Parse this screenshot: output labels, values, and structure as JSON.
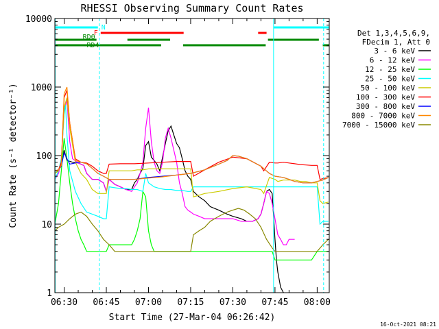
{
  "chart_data": {
    "type": "line",
    "title": "RHESSI Observing Summary Count Rates",
    "xlabel": "Start Time (27-Mar-04 06:26:42)",
    "ylabel": "Count Rate (s⁻¹ detector⁻¹)",
    "x_unit": "minutes after 06:00 UT on 27-Mar-04",
    "xlim": [
      26.7,
      124.3
    ],
    "ylim": [
      1,
      10000
    ],
    "y_scale": "log",
    "x_ticks": [
      {
        "value": 30,
        "label": "06:30"
      },
      {
        "value": 45,
        "label": "06:45"
      },
      {
        "value": 60,
        "label": "07:00"
      },
      {
        "value": 75,
        "label": "07:15"
      },
      {
        "value": 90,
        "label": "07:30"
      },
      {
        "value": 105,
        "label": "07:45"
      },
      {
        "value": 120,
        "label": "08:00"
      }
    ],
    "y_ticks": [
      {
        "value": 1,
        "label": "1"
      },
      {
        "value": 10,
        "label": "10"
      },
      {
        "value": 100,
        "label": "100"
      },
      {
        "value": 1000,
        "label": "1000"
      },
      {
        "value": 10000,
        "label": "10000"
      }
    ],
    "legend_header": [
      "Det 1,3,4,5,6,9,",
      "FDecim 1, Att 0"
    ],
    "legend_position": "right",
    "grid": false,
    "series": [
      {
        "name": "3 - 6 keV",
        "color": "#000000",
        "x": [
          26.7,
          28,
          29,
          30,
          31,
          33,
          35,
          37,
          38,
          40,
          42,
          44,
          45,
          46,
          48,
          50,
          52,
          54,
          55,
          56,
          57,
          58,
          59,
          60,
          61,
          62,
          63,
          64,
          65,
          66,
          67,
          68,
          69,
          70,
          71,
          72,
          73,
          74,
          75,
          76,
          78,
          80,
          82,
          85,
          88,
          90,
          93,
          95,
          97,
          99,
          100,
          101,
          102,
          103,
          104,
          105,
          105.5,
          106,
          107,
          108
        ],
        "y": [
          55,
          60,
          72,
          120,
          85,
          80,
          78,
          72,
          55,
          45,
          45,
          40,
          30,
          45,
          38,
          35,
          32,
          32,
          40,
          45,
          55,
          65,
          140,
          160,
          95,
          85,
          75,
          60,
          95,
          150,
          230,
          270,
          200,
          150,
          130,
          90,
          60,
          50,
          45,
          30,
          25,
          22,
          18,
          16,
          14,
          13,
          12,
          11,
          11,
          12,
          14,
          20,
          30,
          32,
          28,
          6,
          3,
          2,
          1.2,
          1
        ]
      },
      {
        "name": "6 - 12 keV",
        "color": "#ff00ff",
        "x": [
          26.7,
          28,
          29,
          30,
          31,
          32,
          33,
          35,
          37,
          38,
          40,
          42,
          44,
          45,
          46,
          48,
          50,
          52,
          54,
          55,
          56,
          57,
          58,
          59,
          60,
          61,
          62,
          63,
          64,
          65,
          66,
          67,
          68,
          69,
          70,
          71,
          72,
          73,
          74,
          75,
          76,
          78,
          80,
          82,
          85,
          88,
          90,
          93,
          95,
          97,
          99,
          100,
          101,
          102,
          103,
          104,
          105,
          106,
          107,
          108,
          109,
          110,
          112
        ],
        "y": [
          45,
          55,
          80,
          450,
          650,
          160,
          90,
          78,
          72,
          55,
          45,
          45,
          40,
          30,
          45,
          38,
          35,
          32,
          30,
          35,
          40,
          55,
          80,
          250,
          500,
          160,
          80,
          60,
          55,
          80,
          180,
          250,
          180,
          120,
          80,
          40,
          28,
          18,
          16,
          15,
          14,
          13,
          12,
          12,
          12,
          12,
          12,
          11,
          11,
          11,
          12,
          14,
          20,
          30,
          28,
          20,
          12,
          7,
          6,
          5,
          5,
          6,
          6
        ]
      },
      {
        "name": "12 - 25 keV",
        "color": "#00ff00",
        "x": [
          26.7,
          28,
          29,
          30,
          31,
          32,
          33,
          34,
          35,
          36,
          37,
          38,
          40,
          42,
          44,
          45,
          46,
          48,
          50,
          52,
          54,
          55,
          56,
          57,
          58,
          59,
          60,
          61,
          62,
          63,
          64,
          66,
          68,
          70,
          72,
          74,
          75,
          76,
          80,
          85,
          90,
          95,
          100,
          104,
          105,
          106,
          108,
          110,
          112,
          114,
          116,
          118,
          120,
          122,
          124
        ],
        "y": [
          10,
          20,
          60,
          180,
          90,
          40,
          20,
          12,
          8,
          6,
          5,
          4,
          4,
          4,
          4,
          4,
          5,
          5,
          5,
          5,
          5,
          6,
          8,
          12,
          30,
          25,
          8,
          5,
          4,
          4,
          4,
          4,
          4,
          4,
          4,
          4,
          4,
          4,
          4,
          4,
          4,
          4,
          4,
          4,
          3,
          3,
          3,
          3,
          3,
          3,
          3,
          3,
          4,
          4,
          4
        ]
      },
      {
        "name": "25 - 50 keV",
        "color": "#00ffff",
        "x": [
          26.7,
          28,
          29,
          30,
          30.5,
          31,
          32,
          34,
          36,
          38,
          40,
          42,
          44,
          45,
          46,
          48,
          50,
          52,
          54,
          56,
          58,
          59,
          60,
          62,
          64,
          66,
          68,
          70,
          72,
          74,
          75,
          76,
          78,
          80,
          85,
          90,
          95,
          100,
          104,
          105,
          106,
          108,
          110,
          112,
          114,
          116,
          118,
          120,
          121,
          122,
          124
        ],
        "y": [
          45,
          60,
          90,
          400,
          550,
          200,
          60,
          30,
          20,
          15,
          14,
          13,
          12,
          12,
          35,
          34,
          33,
          33,
          32,
          32,
          30,
          55,
          40,
          35,
          33,
          32,
          32,
          31,
          31,
          30,
          30,
          35,
          35,
          35,
          35,
          35,
          35,
          35,
          35,
          35,
          35,
          35,
          35,
          35,
          35,
          35,
          35,
          35,
          10,
          11,
          11
        ]
      },
      {
        "name": "50 - 100 keV",
        "color": "#cccc00",
        "x": [
          26.7,
          28,
          29,
          30,
          31,
          32,
          34,
          36,
          38,
          40,
          42,
          44,
          45,
          46,
          48,
          50,
          52,
          54,
          56,
          58,
          60,
          62,
          64,
          66,
          68,
          70,
          72,
          74,
          75,
          76,
          80,
          85,
          90,
          95,
          100,
          101,
          103,
          105,
          106,
          108,
          110,
          112,
          114,
          116,
          118,
          120,
          121,
          122,
          124
        ],
        "y": [
          55,
          60,
          80,
          500,
          700,
          250,
          80,
          55,
          45,
          32,
          28,
          28,
          28,
          60,
          60,
          60,
          60,
          60,
          62,
          62,
          64,
          64,
          64,
          64,
          64,
          64,
          64,
          64,
          64,
          25,
          28,
          30,
          33,
          35,
          32,
          28,
          48,
          45,
          42,
          44,
          44,
          44,
          42,
          42,
          40,
          40,
          22,
          20,
          21
        ]
      },
      {
        "name": "100 - 300 keV",
        "color": "#ff0000",
        "x": [
          26.7,
          28,
          29,
          30,
          31,
          32,
          34,
          36,
          38,
          40,
          42,
          44,
          45,
          46,
          50,
          55,
          60,
          65,
          70,
          74,
          75,
          76,
          80,
          85,
          90,
          95,
          100,
          101,
          103,
          105,
          106,
          108,
          110,
          112,
          114,
          116,
          118,
          120,
          121,
          122,
          124
        ],
        "y": [
          60,
          62,
          80,
          700,
          900,
          300,
          90,
          80,
          78,
          70,
          60,
          55,
          55,
          75,
          76,
          76,
          78,
          80,
          82,
          82,
          82,
          50,
          62,
          80,
          95,
          90,
          70,
          60,
          80,
          78,
          78,
          80,
          78,
          76,
          74,
          73,
          72,
          72,
          45,
          46,
          48
        ]
      },
      {
        "name": "300 - 800 keV",
        "color": "#0000ff",
        "x": [
          26.7,
          28,
          29,
          30,
          31,
          32,
          34,
          36,
          38,
          40,
          42,
          44,
          46,
          50,
          55,
          60,
          65,
          70,
          75,
          80,
          85,
          88,
          90,
          92,
          95,
          100,
          103,
          105,
          108,
          110,
          112,
          115,
          118,
          120,
          122,
          124
        ],
        "y": [
          60,
          62,
          70,
          110,
          90,
          75,
          78,
          80,
          76,
          65,
          55,
          50,
          45,
          45,
          45,
          48,
          50,
          52,
          55,
          62,
          75,
          85,
          100,
          98,
          90,
          70,
          55,
          50,
          48,
          45,
          42,
          40,
          40,
          42,
          44,
          48
        ]
      },
      {
        "name": "800 - 7000 keV",
        "color": "#ff8800",
        "x": [
          26.7,
          28,
          29,
          30,
          31,
          32,
          34,
          36,
          38,
          40,
          42,
          44,
          46,
          50,
          55,
          60,
          65,
          70,
          75,
          80,
          85,
          88,
          90,
          92,
          95,
          100,
          103,
          105,
          108,
          110,
          112,
          115,
          118,
          120,
          122,
          124
        ],
        "y": [
          60,
          62,
          72,
          800,
          1000,
          300,
          85,
          80,
          76,
          65,
          55,
          50,
          45,
          45,
          45,
          47,
          49,
          52,
          55,
          62,
          75,
          85,
          100,
          98,
          90,
          70,
          55,
          50,
          48,
          45,
          42,
          40,
          40,
          42,
          44,
          48
        ]
      },
      {
        "name": "7000 - 15000 keV",
        "color": "#888800",
        "x": [
          26.7,
          28,
          30,
          32,
          34,
          36,
          38,
          40,
          42,
          44,
          46,
          48,
          50,
          55,
          60,
          65,
          70,
          74,
          75,
          76,
          78,
          80,
          82,
          85,
          88,
          90,
          92,
          94,
          96,
          98,
          100,
          102,
          104,
          105,
          106,
          108,
          110,
          115,
          120,
          122,
          124
        ],
        "y": [
          8,
          9,
          10,
          12,
          14,
          15,
          13,
          10,
          8,
          6,
          5,
          4,
          4,
          4,
          4,
          4,
          4,
          4,
          4,
          7,
          8,
          9,
          11,
          13,
          15,
          16,
          17,
          16,
          14,
          12,
          9,
          6,
          4.5,
          4,
          4,
          4,
          4,
          4,
          4,
          5,
          6
        ]
      }
    ],
    "annotations": [
      {
        "label": "N",
        "color": "#00ffff",
        "segments": [
          [
            26.7,
            42
          ],
          [
            104.5,
            124.3
          ]
        ]
      },
      {
        "label": "F",
        "color": "#ff0000",
        "segments": [
          [
            43,
            72.5
          ],
          [
            99,
            102
          ]
        ]
      },
      {
        "label": "RD0",
        "color": "#008800",
        "segments": [
          [
            26.7,
            41.5
          ],
          [
            52.5,
            67.7
          ],
          [
            102.5,
            120.6
          ]
        ]
      },
      {
        "label": "RD4",
        "color": "#008800",
        "segments": [
          [
            26.7,
            64.5
          ],
          [
            72.3,
            101.7
          ],
          [
            122,
            124.3
          ]
        ]
      }
    ],
    "vertical_markers": [
      {
        "x": 26.8,
        "color": "#00ffff",
        "style": "solid"
      },
      {
        "x": 42.5,
        "color": "#00ffff",
        "style": "dashed"
      },
      {
        "x": 104.5,
        "color": "#00ffff",
        "style": "solid"
      },
      {
        "x": 122.3,
        "color": "#00ffff",
        "style": "dashed"
      }
    ]
  },
  "footer": {
    "timestamp": "16-Oct-2021 08:21"
  }
}
